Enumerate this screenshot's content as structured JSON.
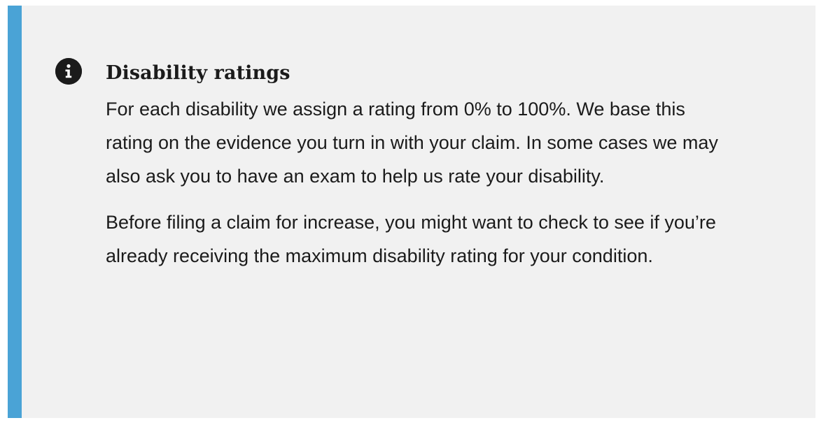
{
  "alert": {
    "icon": "info-icon",
    "accent_color": "#4aa3d6",
    "background_color": "#f1f1f1",
    "heading": "Disability ratings",
    "paragraphs": [
      "For each disability we assign a rating from 0% to 100%. We base this rating on the evidence you turn in with your claim. In some cases we may also ask you to have an exam to help us rate your disability.",
      "Before filing a claim for increase, you might want to check to see if you’re already receiving the maximum disability rating for your condition."
    ]
  }
}
